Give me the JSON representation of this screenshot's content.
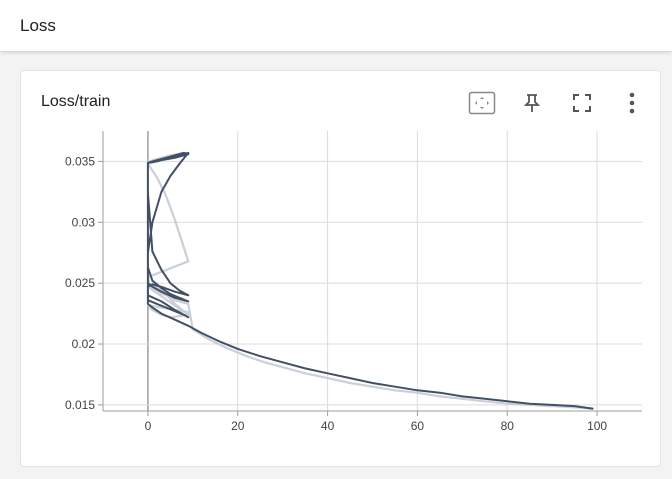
{
  "header": {
    "title": "Loss"
  },
  "card": {
    "title": "Loss/train",
    "tools": [
      {
        "name": "fit-domain-icon"
      },
      {
        "name": "pin-icon"
      },
      {
        "name": "fullscreen-icon"
      },
      {
        "name": "more-vert-icon"
      }
    ]
  },
  "chart_data": {
    "type": "line",
    "title": "Loss/train",
    "xlabel": "",
    "ylabel": "",
    "xlim": [
      -10,
      110
    ],
    "ylim": [
      0.0145,
      0.0375
    ],
    "x_ticks": [
      0,
      20,
      40,
      60,
      80,
      100
    ],
    "x_tick_labels": [
      "0",
      "20",
      "40",
      "60",
      "80",
      "100"
    ],
    "y_ticks": [
      0.015,
      0.02,
      0.025,
      0.03,
      0.035
    ],
    "y_tick_labels": [
      "0.015",
      "0.02",
      "0.025",
      "0.03",
      "0.035"
    ],
    "grid": true,
    "colors": {
      "smoothed": "#425066",
      "raw": "#c5cad3"
    },
    "series": [
      {
        "role": "raw",
        "x": [
          0,
          1,
          3,
          5,
          7,
          8,
          9,
          0,
          1,
          3,
          5,
          8,
          0,
          2,
          4,
          6,
          9,
          0,
          0.5,
          1,
          2,
          4,
          6,
          8,
          9,
          0,
          1,
          2,
          3,
          5,
          7,
          9,
          0,
          2,
          4,
          6,
          9,
          10,
          14,
          18,
          22,
          26,
          30,
          35,
          40,
          45,
          50,
          55,
          60,
          65,
          70,
          75,
          80,
          85,
          90,
          95,
          99
        ],
        "y": [
          0.0348,
          0.0349,
          0.0352,
          0.0354,
          0.0356,
          0.0357,
          0.0356,
          0.0349,
          0.0351,
          0.0353,
          0.0355,
          0.0357,
          0.0348,
          0.0337,
          0.0322,
          0.0302,
          0.0268,
          0.0255,
          0.0248,
          0.0249,
          0.0247,
          0.0241,
          0.0233,
          0.0227,
          0.0226,
          0.0232,
          0.0228,
          0.0226,
          0.0224,
          0.0222,
          0.0223,
          0.0224,
          0.0247,
          0.0243,
          0.024,
          0.0236,
          0.0233,
          0.0212,
          0.0203,
          0.0196,
          0.019,
          0.0185,
          0.0181,
          0.0176,
          0.0172,
          0.0168,
          0.0165,
          0.0162,
          0.016,
          0.0157,
          0.0155,
          0.0153,
          0.0151,
          0.015,
          0.0149,
          0.0148,
          0.0147
        ]
      },
      {
        "role": "smoothed",
        "x": [
          0,
          2,
          4,
          6,
          8,
          9,
          6,
          3,
          1,
          0,
          0,
          0.5,
          1,
          3,
          5,
          7,
          9,
          6,
          3,
          1,
          0,
          0,
          1,
          3,
          5,
          7,
          9,
          5,
          2,
          0,
          0,
          1,
          3,
          5,
          7,
          9,
          6,
          3,
          1,
          0,
          0,
          2,
          4,
          6,
          8,
          9,
          6,
          3,
          0,
          0,
          1,
          3,
          6,
          9,
          12,
          16,
          20,
          25,
          30,
          35,
          40,
          45,
          50,
          55,
          60,
          65,
          70,
          75,
          80,
          85,
          90,
          95,
          99
        ],
        "y": [
          0.0349,
          0.0351,
          0.0353,
          0.0355,
          0.0357,
          0.0356,
          0.0353,
          0.0351,
          0.035,
          0.0349,
          0.0324,
          0.03,
          0.0276,
          0.0261,
          0.025,
          0.0244,
          0.024,
          0.0243,
          0.0247,
          0.0249,
          0.0247,
          0.0275,
          0.03,
          0.0325,
          0.0338,
          0.0348,
          0.0357,
          0.0353,
          0.035,
          0.0349,
          0.0263,
          0.0252,
          0.0246,
          0.0241,
          0.0238,
          0.0235,
          0.0238,
          0.0243,
          0.0247,
          0.025,
          0.0236,
          0.0233,
          0.023,
          0.0227,
          0.0224,
          0.0222,
          0.0228,
          0.0235,
          0.024,
          0.0233,
          0.023,
          0.0225,
          0.022,
          0.0215,
          0.0209,
          0.0202,
          0.0196,
          0.019,
          0.0185,
          0.018,
          0.0176,
          0.0172,
          0.0168,
          0.0165,
          0.0162,
          0.016,
          0.0157,
          0.0155,
          0.0153,
          0.0151,
          0.015,
          0.0149,
          0.0147
        ]
      }
    ]
  }
}
